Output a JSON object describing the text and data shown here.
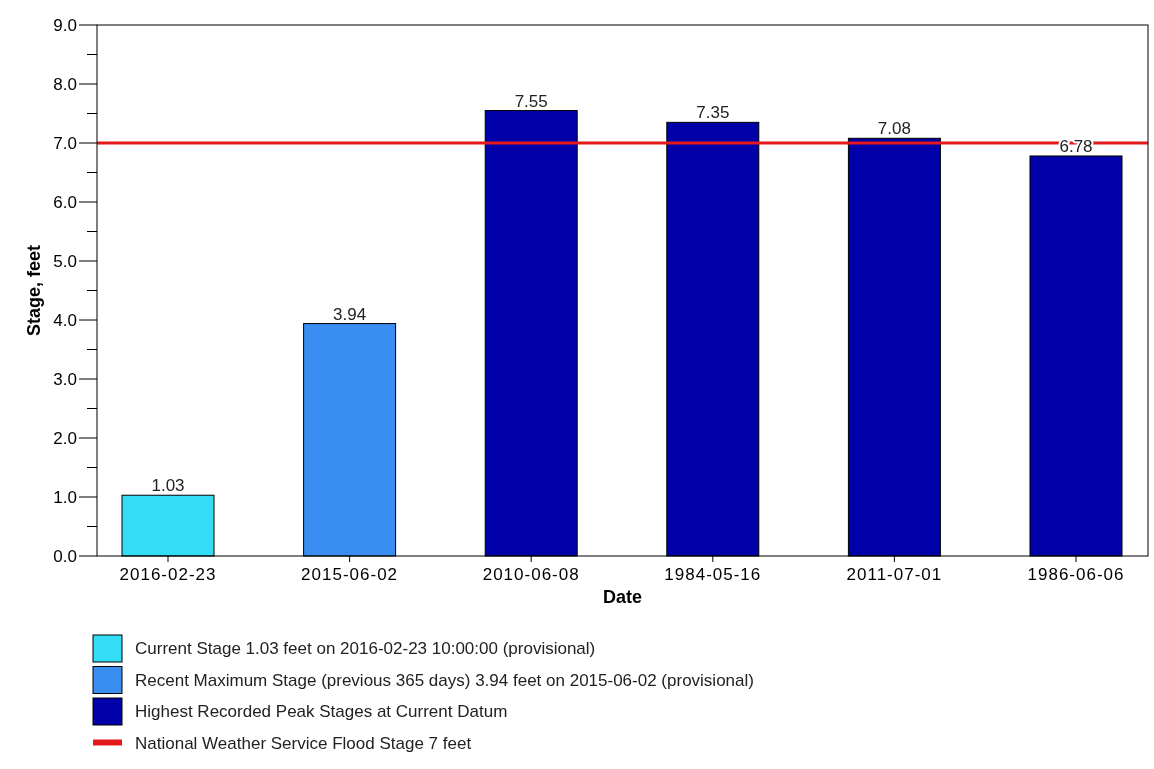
{
  "chart_data": {
    "type": "bar",
    "xlabel": "Date",
    "ylabel": "Stage, feet",
    "categories": [
      "2016-02-23",
      "2015-06-02",
      "2010-06-08",
      "1984-05-16",
      "2011-07-01",
      "1986-06-06"
    ],
    "series": [
      {
        "name": "Current Stage 1.03 feet on 2016-02-23 10:00:00 (provisional)",
        "color": "#33ddf5",
        "values": [
          1.03,
          null,
          null,
          null,
          null,
          null
        ]
      },
      {
        "name": "Recent Maximum Stage (previous 365 days) 3.94 feet on 2015-06-02 (provisional)",
        "color": "#3a8ef2",
        "values": [
          null,
          3.94,
          null,
          null,
          null,
          null
        ]
      },
      {
        "name": "Highest Recorded Peak Stages at Current Datum",
        "color": "#0000a8",
        "values": [
          null,
          null,
          7.55,
          7.35,
          7.08,
          6.78
        ]
      }
    ],
    "ylim": [
      0,
      9
    ],
    "yticks": [
      {
        "value": 0,
        "label": "0.0"
      },
      {
        "value": 0.5,
        "label": null
      },
      {
        "value": 1,
        "label": "1.0"
      },
      {
        "value": 1.5,
        "label": null
      },
      {
        "value": 2,
        "label": "2.0"
      },
      {
        "value": 2.5,
        "label": null
      },
      {
        "value": 3,
        "label": "3.0"
      },
      {
        "value": 3.5,
        "label": null
      },
      {
        "value": 4,
        "label": "4.0"
      },
      {
        "value": 4.5,
        "label": null
      },
      {
        "value": 5,
        "label": "5.0"
      },
      {
        "value": 5.5,
        "label": null
      },
      {
        "value": 6,
        "label": "6.0"
      },
      {
        "value": 6.5,
        "label": null
      },
      {
        "value": 7,
        "label": "7.0"
      },
      {
        "value": 7.5,
        "label": null
      },
      {
        "value": 8,
        "label": "8.0"
      },
      {
        "value": 8.5,
        "label": null
      },
      {
        "value": 9,
        "label": "9.0"
      }
    ],
    "ref_lines": [
      {
        "axis": "y",
        "value": 7,
        "label": "National Weather Service Flood Stage 7 feet",
        "color": "#e31a1c"
      }
    ],
    "data_labels": true,
    "grid": false,
    "legend": "bottom"
  }
}
